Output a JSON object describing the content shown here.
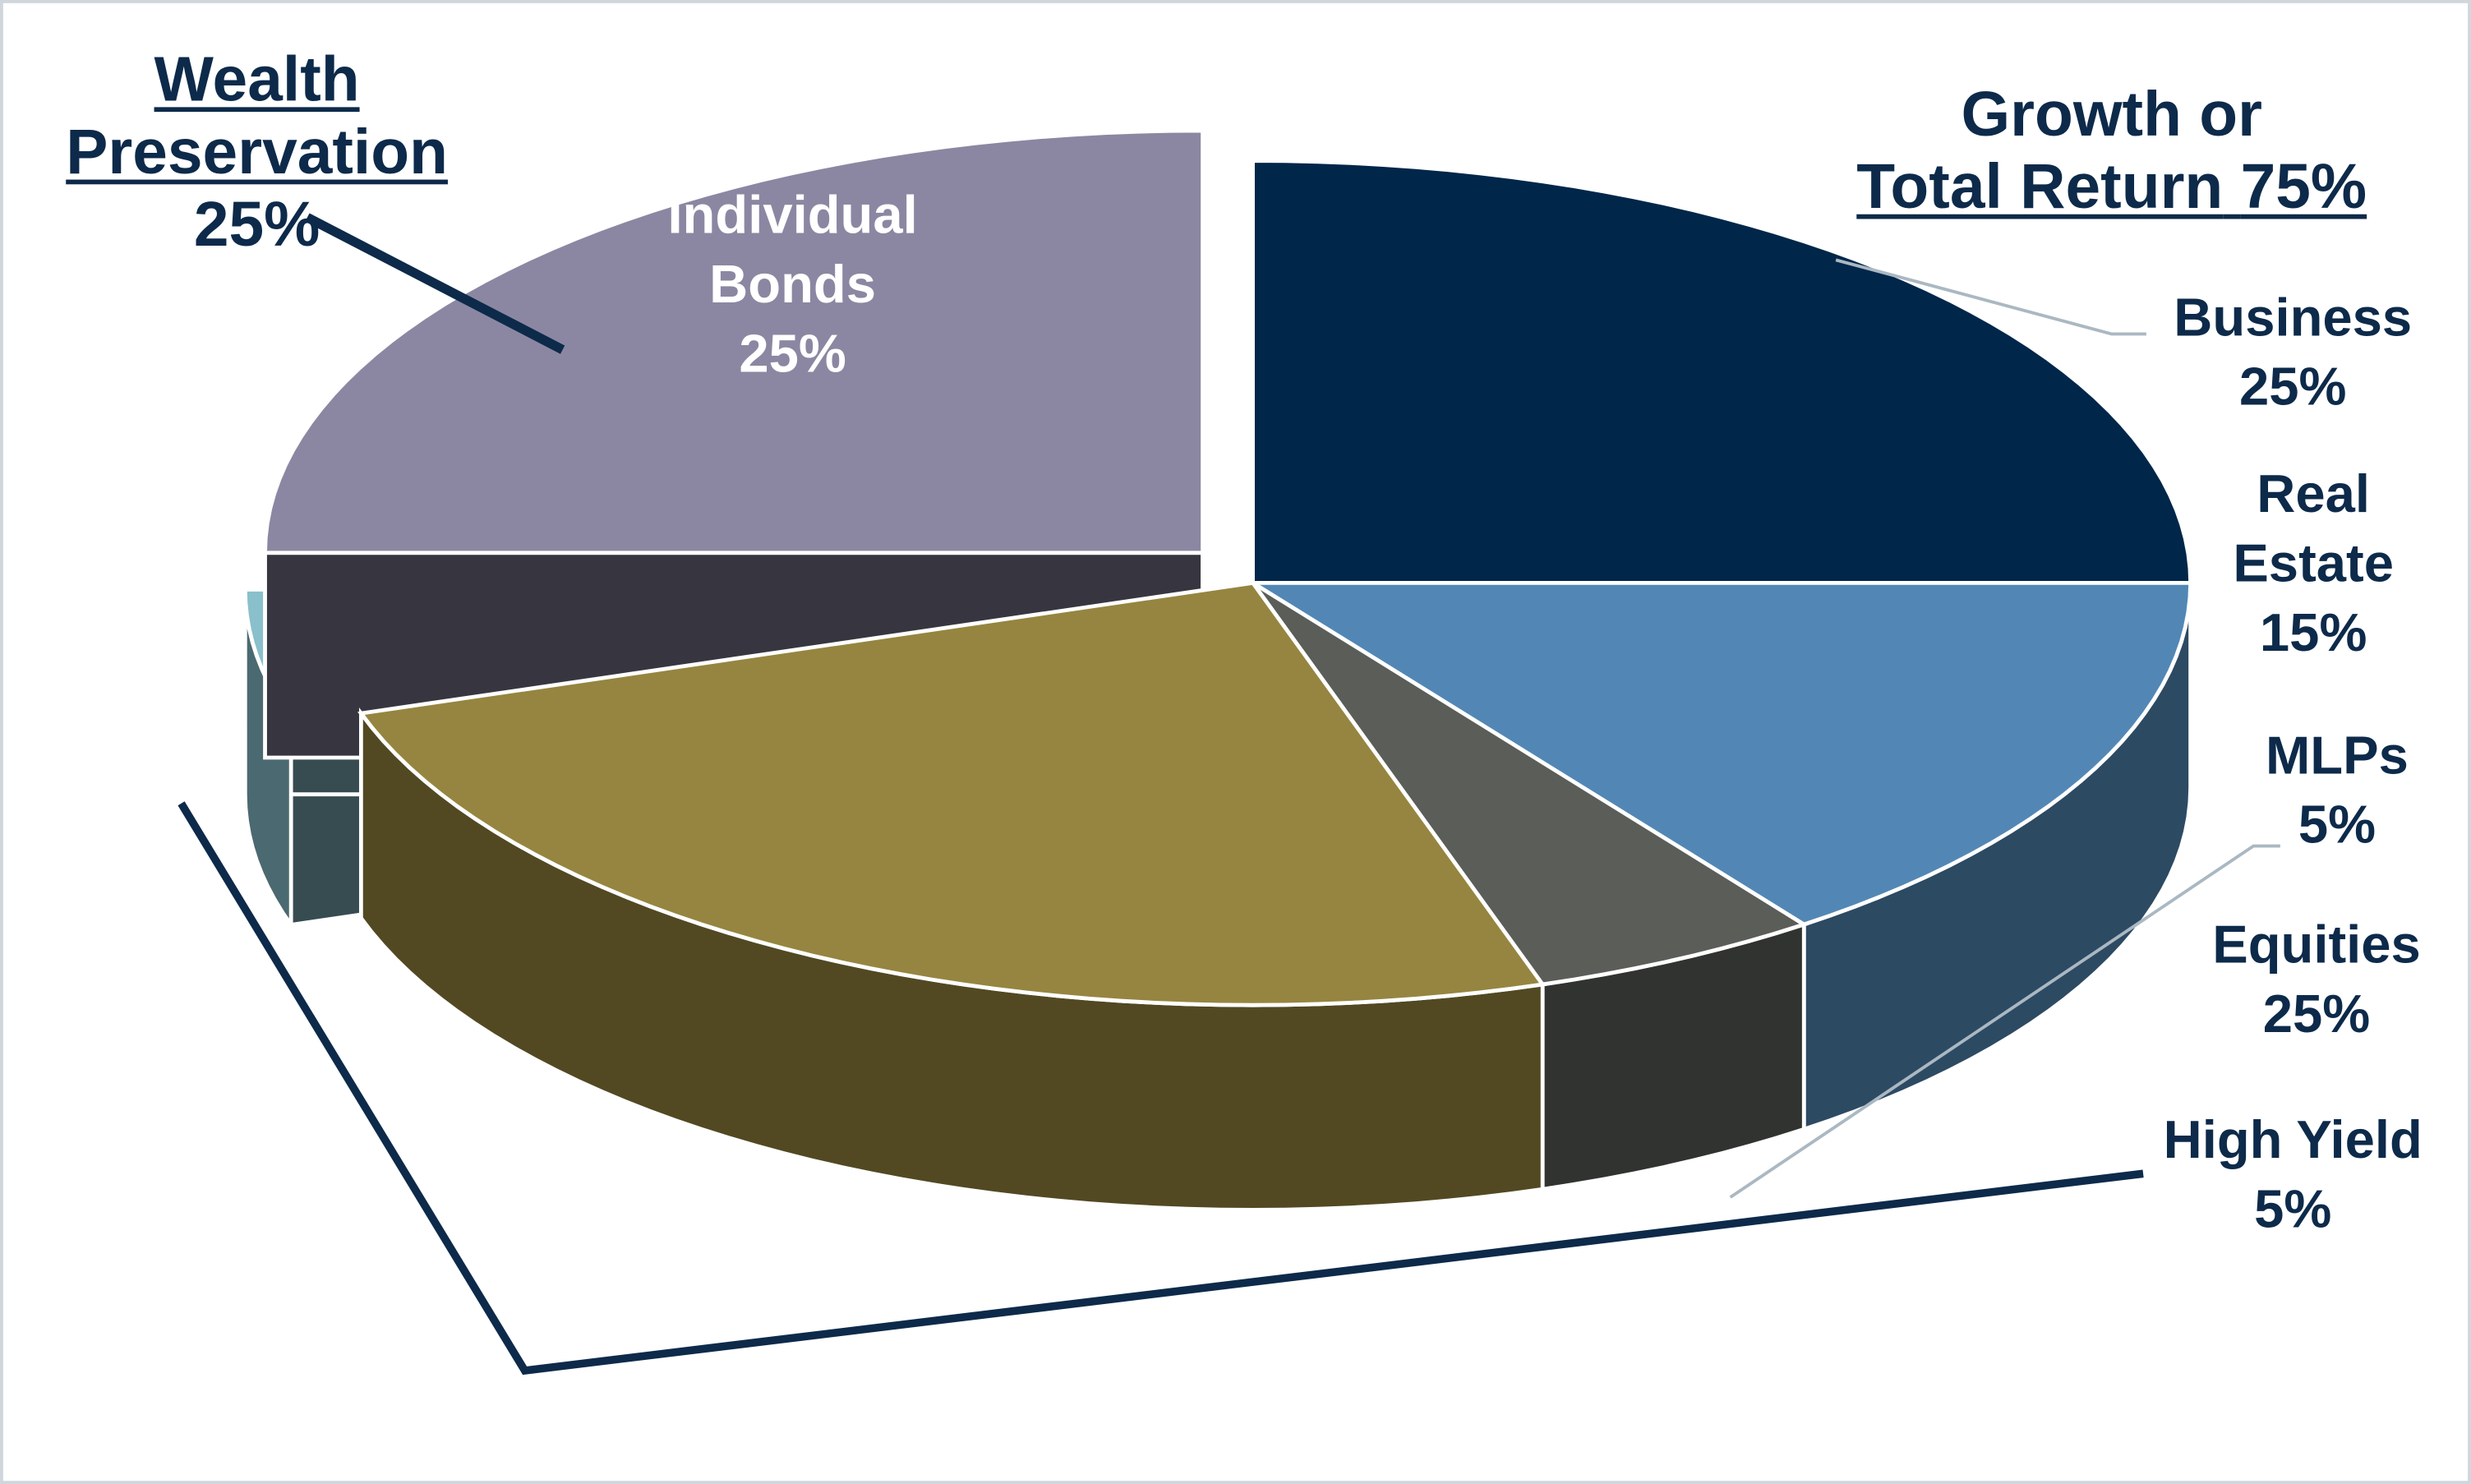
{
  "chart_data": {
    "type": "pie3d",
    "categories": [
      "Business",
      "Real Estate",
      "MLPs",
      "Equities",
      "High Yield",
      "Individual Bonds"
    ],
    "values": [
      25,
      15,
      5,
      25,
      5,
      25
    ],
    "value_labels": [
      "25%",
      "15%",
      "5%",
      "25%",
      "5%",
      "25%"
    ],
    "colors": [
      "#00264a",
      "#5287b5",
      "#5a5d58",
      "#968540",
      "#8abfcc",
      "#8b87a2"
    ],
    "exploded": [
      4,
      5
    ],
    "groups": [
      {
        "name": "Wealth Preservation",
        "value": 25,
        "value_label": "25%"
      },
      {
        "name": "Growth or",
        "name2": "Total Return",
        "value": 75,
        "value_label": "75%"
      }
    ]
  }
}
